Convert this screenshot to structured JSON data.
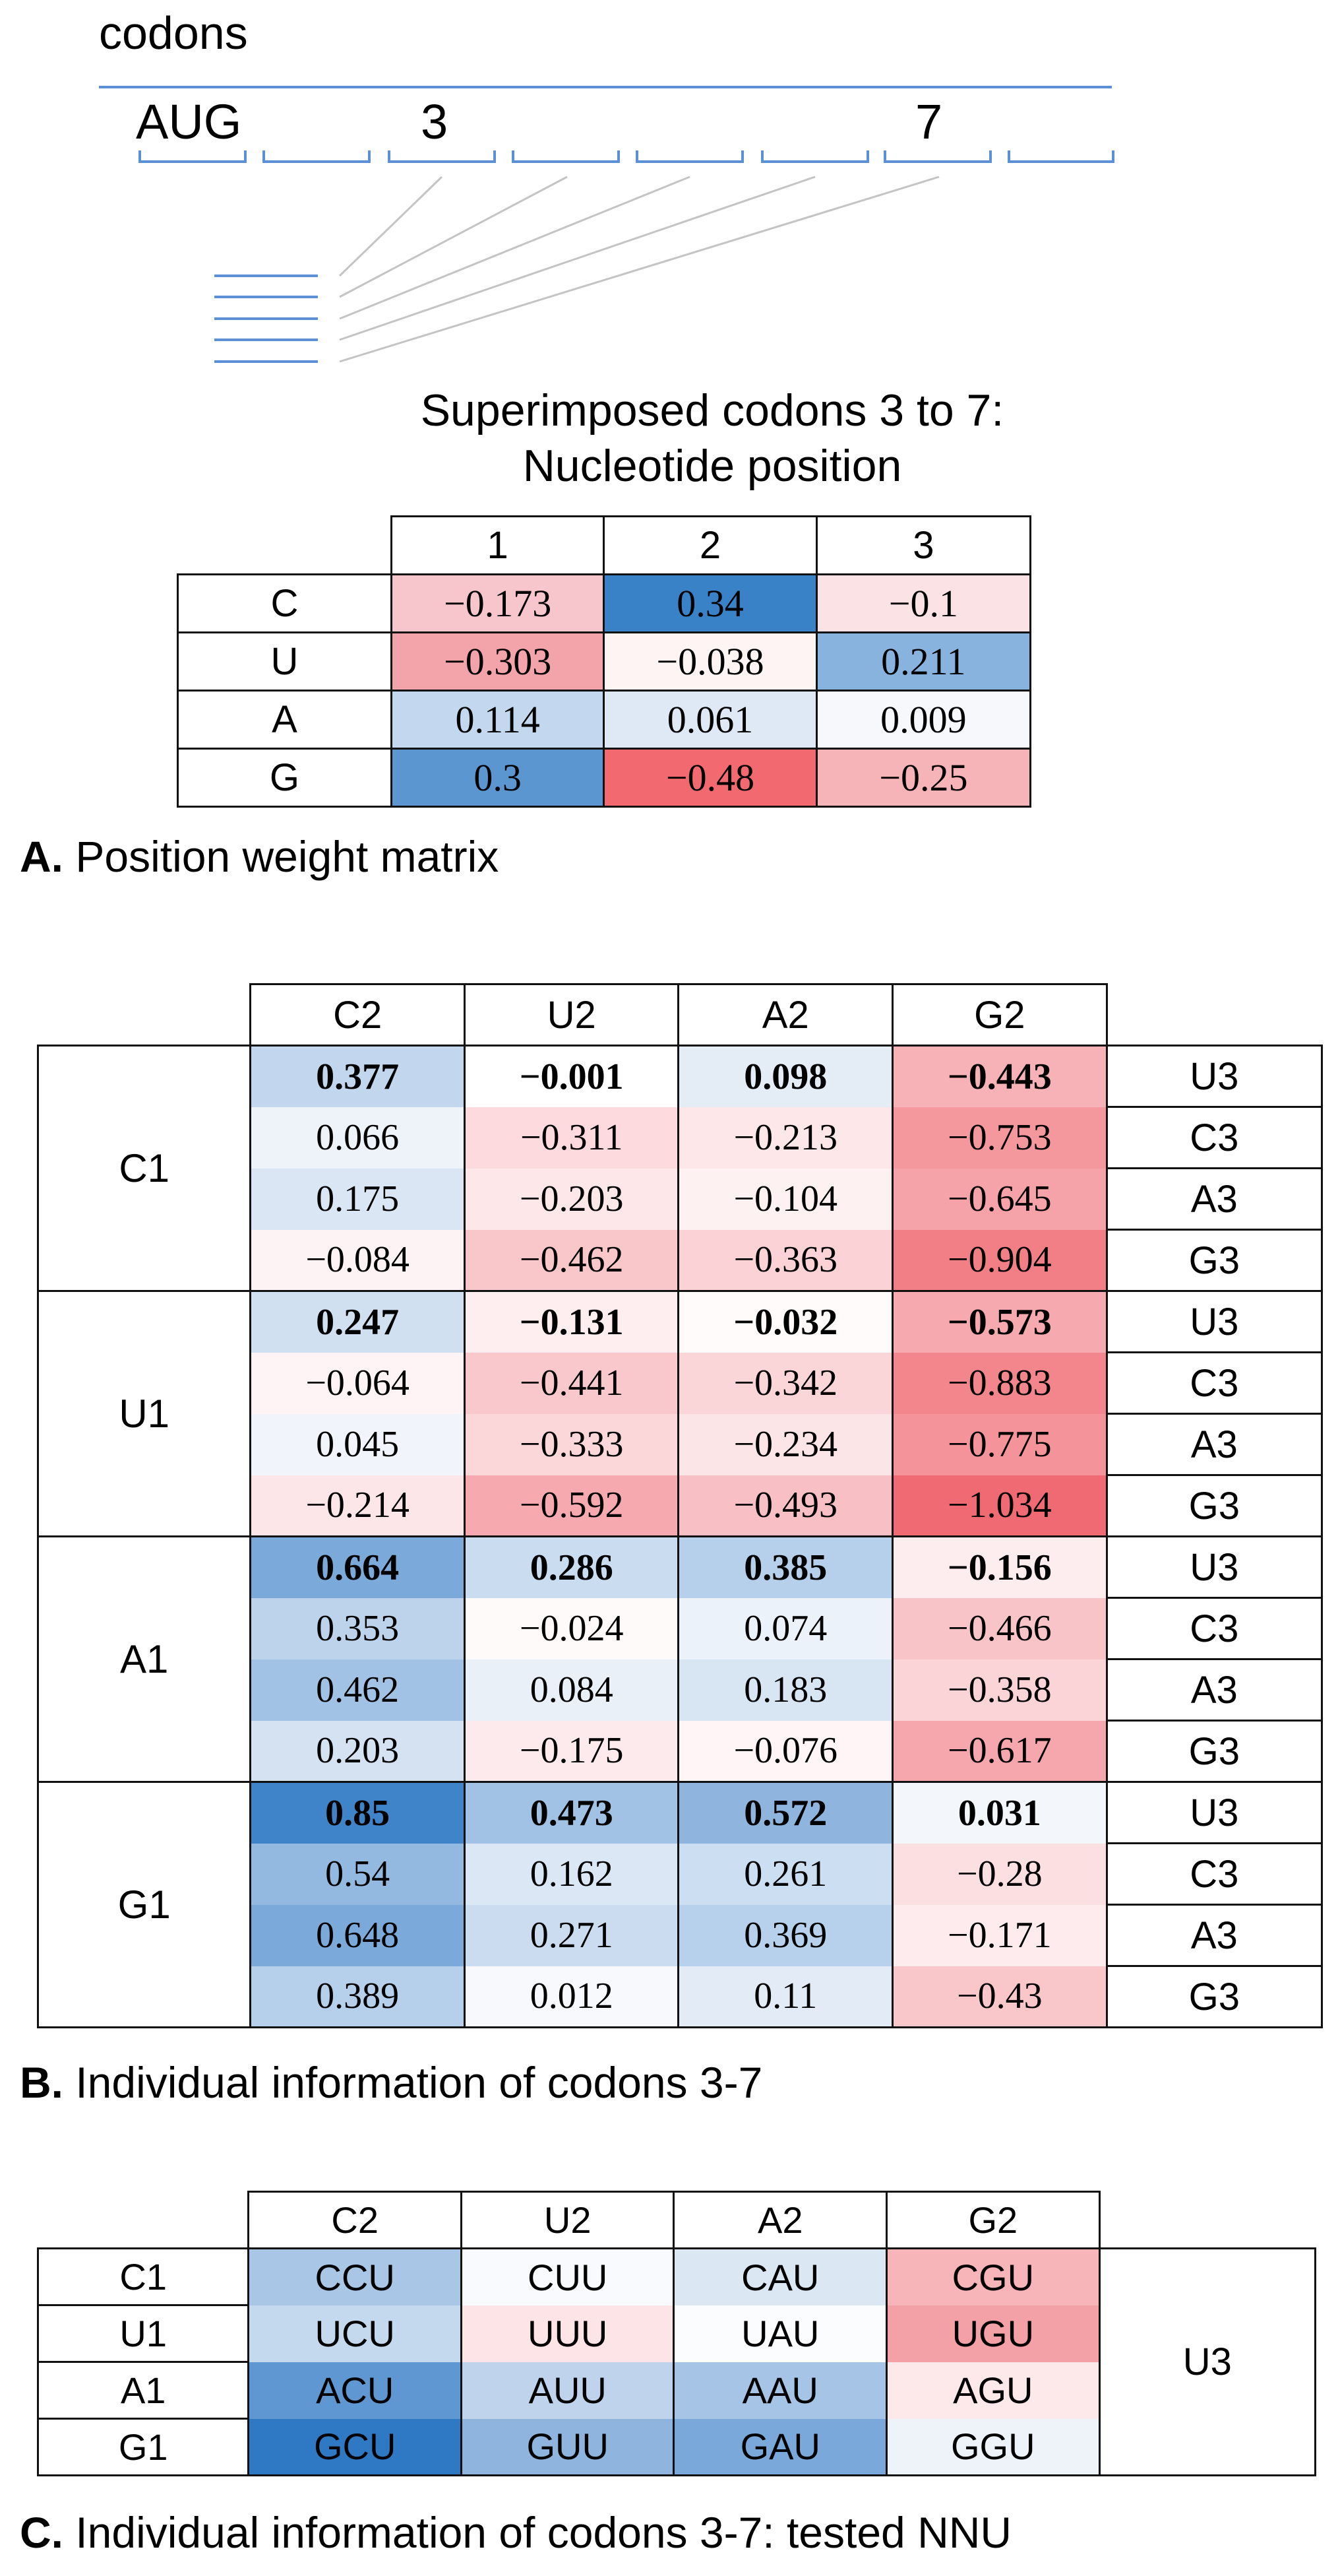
{
  "codons": {
    "label": "codons",
    "start_label": "AUG",
    "pos3_label": "3",
    "pos7_label": "7",
    "line_color": "#5b8fd6"
  },
  "pwm": {
    "title_line1": "Superimposed codons 3 to 7:",
    "title_line2": "Nucleotide position",
    "columns": [
      "1",
      "2",
      "3"
    ],
    "rows": [
      {
        "label": "C",
        "cells": [
          {
            "v": "−0.173",
            "bg": "#f7c6cc"
          },
          {
            "v": "0.34",
            "bg": "#3a82c8"
          },
          {
            "v": "−0.1",
            "bg": "#fbe3e5"
          }
        ]
      },
      {
        "label": "U",
        "cells": [
          {
            "v": "−0.303",
            "bg": "#f3a3aa"
          },
          {
            "v": "−0.038",
            "bg": "#fef4f4"
          },
          {
            "v": "0.211",
            "bg": "#89b3df"
          }
        ]
      },
      {
        "label": "A",
        "cells": [
          {
            "v": "0.114",
            "bg": "#c3d7ee"
          },
          {
            "v": "0.061",
            "bg": "#dfe8f5"
          },
          {
            "v": "0.009",
            "bg": "#f6f8fc"
          }
        ]
      },
      {
        "label": "G",
        "cells": [
          {
            "v": "0.3",
            "bg": "#5b96d1"
          },
          {
            "v": "−0.48",
            "bg": "#f26a6f"
          },
          {
            "v": "−0.25",
            "bg": "#f6b3b8"
          }
        ]
      }
    ],
    "caption_letter": "A.",
    "caption_text": " Position weight matrix"
  },
  "table_b": {
    "columns": [
      "C2",
      "U2",
      "A2",
      "G2"
    ],
    "groups": [
      {
        "label": "C1",
        "rows": [
          {
            "bold": true,
            "third": "U3",
            "cells": [
              {
                "v": "0.377",
                "bg": "#c2d6ed"
              },
              {
                "v": "−0.001",
                "bg": "#ffffff"
              },
              {
                "v": "0.098",
                "bg": "#e4ecf6"
              },
              {
                "v": "−0.443",
                "bg": "#f7b2b7"
              }
            ]
          },
          {
            "bold": false,
            "third": "C3",
            "cells": [
              {
                "v": "0.066",
                "bg": "#eef3fa"
              },
              {
                "v": "−0.311",
                "bg": "#fcdadd"
              },
              {
                "v": "−0.213",
                "bg": "#fde7e8"
              },
              {
                "v": "−0.753",
                "bg": "#f4989e"
              }
            ]
          },
          {
            "bold": false,
            "third": "A3",
            "cells": [
              {
                "v": "0.175",
                "bg": "#dae6f3"
              },
              {
                "v": "−0.203",
                "bg": "#fde7e9"
              },
              {
                "v": "−0.104",
                "bg": "#fef1f2"
              },
              {
                "v": "−0.645",
                "bg": "#f5a2a8"
              }
            ]
          },
          {
            "bold": false,
            "third": "G3",
            "cells": [
              {
                "v": "−0.084",
                "bg": "#fef3f4"
              },
              {
                "v": "−0.462",
                "bg": "#f9c6ca"
              },
              {
                "v": "−0.363",
                "bg": "#fbd3d6"
              },
              {
                "v": "−0.904",
                "bg": "#f27f86"
              }
            ]
          }
        ]
      },
      {
        "label": "U1",
        "rows": [
          {
            "bold": true,
            "third": "U3",
            "cells": [
              {
                "v": "0.247",
                "bg": "#d0e0f1"
              },
              {
                "v": "−0.131",
                "bg": "#feeef0"
              },
              {
                "v": "−0.032",
                "bg": "#fffbfb"
              },
              {
                "v": "−0.573",
                "bg": "#f6a9af"
              }
            ]
          },
          {
            "bold": false,
            "third": "C3",
            "cells": [
              {
                "v": "−0.064",
                "bg": "#fff4f5"
              },
              {
                "v": "−0.441",
                "bg": "#f9c8cc"
              },
              {
                "v": "−0.342",
                "bg": "#fbd6d9"
              },
              {
                "v": "−0.883",
                "bg": "#f2868c"
              }
            ]
          },
          {
            "bold": false,
            "third": "A3",
            "cells": [
              {
                "v": "0.045",
                "bg": "#f1f5fb"
              },
              {
                "v": "−0.333",
                "bg": "#fbd7da"
              },
              {
                "v": "−0.234",
                "bg": "#fce5e7"
              },
              {
                "v": "−0.775",
                "bg": "#f4949a"
              }
            ]
          },
          {
            "bold": false,
            "third": "G3",
            "cells": [
              {
                "v": "−0.214",
                "bg": "#fde6e8"
              },
              {
                "v": "−0.592",
                "bg": "#f6aab0"
              },
              {
                "v": "−0.493",
                "bg": "#f8c0c5"
              },
              {
                "v": "−1.034",
                "bg": "#ef6a72"
              }
            ]
          }
        ]
      },
      {
        "label": "A1",
        "rows": [
          {
            "bold": true,
            "third": "U3",
            "cells": [
              {
                "v": "0.664",
                "bg": "#7aa9da"
              },
              {
                "v": "0.286",
                "bg": "#c9dcf0"
              },
              {
                "v": "0.385",
                "bg": "#b6cfea"
              },
              {
                "v": "−0.156",
                "bg": "#fdedee"
              }
            ]
          },
          {
            "bold": false,
            "third": "C3",
            "cells": [
              {
                "v": "0.353",
                "bg": "#bdd3ec"
              },
              {
                "v": "−0.024",
                "bg": "#fffafa"
              },
              {
                "v": "0.074",
                "bg": "#ecf2f9"
              },
              {
                "v": "−0.466",
                "bg": "#f9c4c8"
              }
            ]
          },
          {
            "bold": false,
            "third": "A3",
            "cells": [
              {
                "v": "0.462",
                "bg": "#a2c2e5"
              },
              {
                "v": "0.084",
                "bg": "#e9f0f8"
              },
              {
                "v": "0.183",
                "bg": "#d8e5f3"
              },
              {
                "v": "−0.358",
                "bg": "#fbd4d7"
              }
            ]
          },
          {
            "bold": false,
            "third": "G3",
            "cells": [
              {
                "v": "0.203",
                "bg": "#d4e2f2"
              },
              {
                "v": "−0.175",
                "bg": "#fdeaec"
              },
              {
                "v": "−0.076",
                "bg": "#fff5f6"
              },
              {
                "v": "−0.617",
                "bg": "#f6a7ad"
              }
            ]
          }
        ]
      },
      {
        "label": "G1",
        "rows": [
          {
            "bold": true,
            "third": "U3",
            "cells": [
              {
                "v": "0.85",
                "bg": "#3f84c9"
              },
              {
                "v": "0.473",
                "bg": "#a2c2e5"
              },
              {
                "v": "0.572",
                "bg": "#8fb5df"
              },
              {
                "v": "0.031",
                "bg": "#f3f7fc"
              }
            ]
          },
          {
            "bold": false,
            "third": "C3",
            "cells": [
              {
                "v": "0.54",
                "bg": "#94b9e1"
              },
              {
                "v": "0.162",
                "bg": "#dbe7f4"
              },
              {
                "v": "0.261",
                "bg": "#ccdef1"
              },
              {
                "v": "−0.28",
                "bg": "#fcdfe1"
              }
            ]
          },
          {
            "bold": false,
            "third": "A3",
            "cells": [
              {
                "v": "0.648",
                "bg": "#7ba9da"
              },
              {
                "v": "0.271",
                "bg": "#cbdcf0"
              },
              {
                "v": "0.369",
                "bg": "#b7d0eb"
              },
              {
                "v": "−0.171",
                "bg": "#fdebed"
              }
            ]
          },
          {
            "bold": false,
            "third": "G3",
            "cells": [
              {
                "v": "0.389",
                "bg": "#b6cfea"
              },
              {
                "v": "0.012",
                "bg": "#f7f9fc"
              },
              {
                "v": "0.11",
                "bg": "#e3ebf6"
              },
              {
                "v": "−0.43",
                "bg": "#f9c6ca"
              }
            ]
          }
        ]
      }
    ],
    "caption_letter": "B.",
    "caption_text": " Individual information of codons 3-7"
  },
  "table_c": {
    "columns": [
      "C2",
      "U2",
      "A2",
      "G2"
    ],
    "third": "U3",
    "rows": [
      {
        "label": "C1",
        "cells": [
          {
            "v": "CCU",
            "bg": "#a9c6e6"
          },
          {
            "v": "CUU",
            "bg": "#f8fafd"
          },
          {
            "v": "CAU",
            "bg": "#dce7f4"
          },
          {
            "v": "CGU",
            "bg": "#f7b4b9"
          }
        ]
      },
      {
        "label": "U1",
        "cells": [
          {
            "v": "UCU",
            "bg": "#c4d8ee"
          },
          {
            "v": "UUU",
            "bg": "#fde5e7"
          },
          {
            "v": "UAU",
            "bg": "#fbfcfe"
          },
          {
            "v": "UGU",
            "bg": "#f3a0a6"
          }
        ]
      },
      {
        "label": "A1",
        "cells": [
          {
            "v": "ACU",
            "bg": "#5e97d1"
          },
          {
            "v": "AUU",
            "bg": "#bfd4ec"
          },
          {
            "v": "AAU",
            "bg": "#a6c4e6"
          },
          {
            "v": "AGU",
            "bg": "#fde8ea"
          }
        ]
      },
      {
        "label": "G1",
        "cells": [
          {
            "v": "GCU",
            "bg": "#2f78c4"
          },
          {
            "v": "GUU",
            "bg": "#8fb5df"
          },
          {
            "v": "GAU",
            "bg": "#7aa8da"
          },
          {
            "v": "GGU",
            "bg": "#eef3fa"
          }
        ]
      }
    ],
    "caption_letter": "C.",
    "caption_text": " Individual information of codons 3-7: tested NNU"
  }
}
